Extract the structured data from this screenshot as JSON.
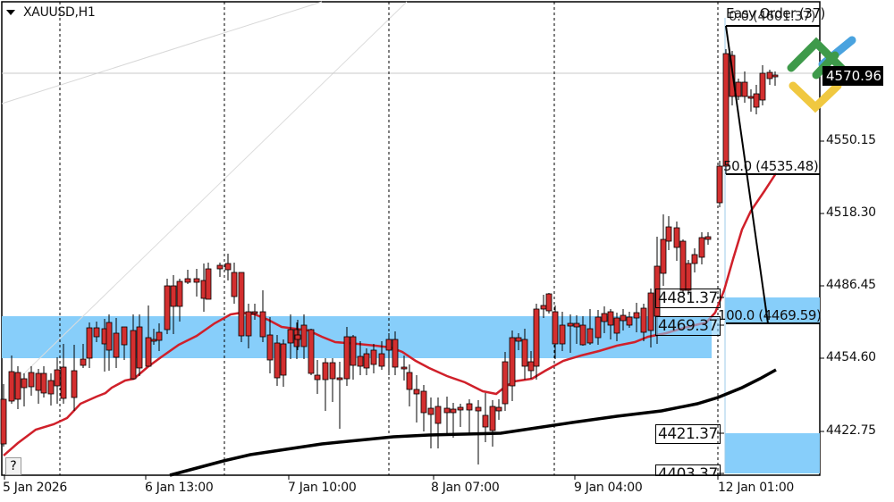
{
  "chart_header": {
    "symbol": "XAUUSD,H1",
    "collapse_icon": "triangle-down-icon"
  },
  "easy_order": {
    "label": "Easy Order",
    "badge": "(37)"
  },
  "current_price": "4570.96",
  "help_button": "?",
  "colors": {
    "bull_candle": "#4caf50",
    "bear_candle": "#d32f2f",
    "ma_fast": "#d0202a",
    "ma_slow": "#000000",
    "zone_fill": "#87cefa",
    "grid_dash": "#000000",
    "trendline": "#d8d8d8"
  },
  "level_boxes": [
    {
      "label": "4481.37",
      "price": 4481.37
    },
    {
      "label": "4469.37",
      "price": 4469.37
    },
    {
      "label": "4421.37",
      "price": 4421.37
    },
    {
      "label": "4403.37",
      "price": 4403.37
    }
  ],
  "fibonacci": {
    "levels": [
      {
        "label": "0.0 (4601.37)",
        "ratio": 0.0,
        "price": 4601.37
      },
      {
        "label": "50.0 (4535.48)",
        "ratio": 50.0,
        "price": 4535.48
      },
      {
        "label": "100.0 (4469.59)",
        "ratio": 100.0,
        "price": 4469.59
      }
    ]
  },
  "chart_data": {
    "type": "candlestick",
    "title": "XAUUSD,H1",
    "xlabel": "",
    "ylabel": "",
    "y_ticks": [
      "4550.15",
      "4518.30",
      "4486.45",
      "4454.60",
      "4422.75"
    ],
    "x_ticks": [
      "5 Jan 2026",
      "6 Jan 13:00",
      "7 Jan 10:00",
      "8 Jan 07:00",
      "9 Jan 04:00",
      "12 Jan 01:00"
    ],
    "ylim": [
      4405,
      4610
    ],
    "grid": "vertical dashed day separators",
    "current_price": 4570.96,
    "horizontal_levels": [
      4481.37,
      4469.37,
      4421.37,
      4403.37
    ],
    "fibonacci_levels": [
      {
        "ratio": 0.0,
        "price": 4601.37
      },
      {
        "ratio": 50.0,
        "price": 4535.48
      },
      {
        "ratio": 100.0,
        "price": 4469.59
      }
    ],
    "zones": [
      {
        "name": "supply/demand zone left",
        "from": 4457,
        "to": 4474
      },
      {
        "name": "zone right upper",
        "from": 4469.59,
        "to": 4481
      },
      {
        "name": "zone right lower",
        "from": 4405,
        "to": 4422
      }
    ],
    "series": [
      {
        "name": "MA fast (red)",
        "values": [
          4411,
          4420,
          4428,
          4433,
          4445,
          4450,
          4456,
          4465,
          4474,
          4470,
          4467,
          4463,
          4463,
          4459,
          4452,
          4447,
          4440,
          4437,
          4444,
          4457,
          4465,
          4472,
          4478
        ]
      },
      {
        "name": "MA slow (black)",
        "values": [
          4398,
          4403,
          4410,
          4414,
          4416,
          4418,
          4419,
          4419,
          4421,
          4424,
          4427,
          4430,
          4441
        ]
      }
    ]
  }
}
